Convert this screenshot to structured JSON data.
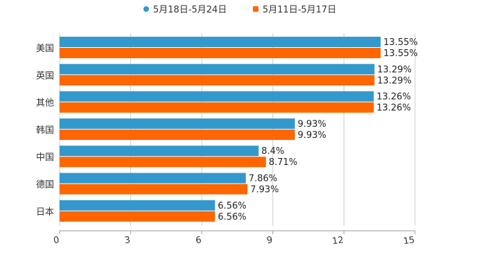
{
  "chart_data": {
    "type": "bar",
    "orientation": "horizontal",
    "title": "",
    "xlabel": "",
    "ylabel": "",
    "categories": [
      "美国",
      "英国",
      "其他",
      "韩国",
      "中国",
      "德国",
      "日本"
    ],
    "series": [
      {
        "name": "5月18日-5月24日",
        "color": "#3399cc",
        "values": [
          13.55,
          13.29,
          13.26,
          9.93,
          8.4,
          7.86,
          6.56
        ],
        "labels": [
          "13.55%",
          "13.29%",
          "13.26%",
          "9.93%",
          "8.4%",
          "7.86%",
          "6.56%"
        ]
      },
      {
        "name": "5月11日-5月17日",
        "color": "#ff6600",
        "values": [
          13.55,
          13.29,
          13.26,
          9.93,
          8.71,
          7.93,
          6.56
        ],
        "labels": [
          "13.55%",
          "13.29%",
          "13.26%",
          "9.93%",
          "8.71%",
          "7.93%",
          "6.56%"
        ]
      }
    ],
    "xlim": [
      0,
      15
    ],
    "xticks": [
      "0",
      "3",
      "6",
      "9",
      "12",
      "15"
    ],
    "grid": true,
    "legend_position": "top-center"
  }
}
